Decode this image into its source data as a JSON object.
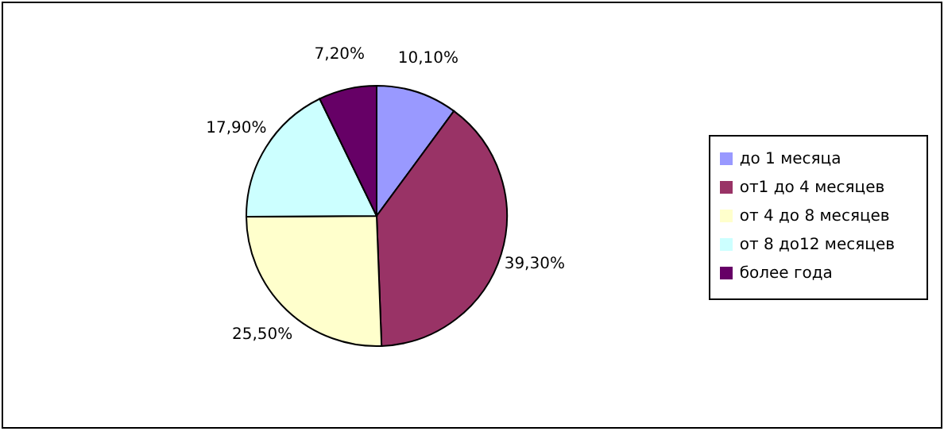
{
  "chart_data": {
    "type": "pie",
    "categories": [
      "до 1 месяца",
      "от1 до 4 месяцев",
      "от 4 до 8 месяцев",
      "от 8 до12 месяцев",
      "более года"
    ],
    "values": [
      10.1,
      39.3,
      25.5,
      17.9,
      7.2
    ],
    "colors": [
      "#9999ff",
      "#993366",
      "#ffffcc",
      "#ccffff",
      "#660066"
    ],
    "value_labels": [
      "10,10%",
      "39,30%",
      "25,50%",
      "17,90%",
      "7,20%"
    ],
    "legend": "right"
  }
}
